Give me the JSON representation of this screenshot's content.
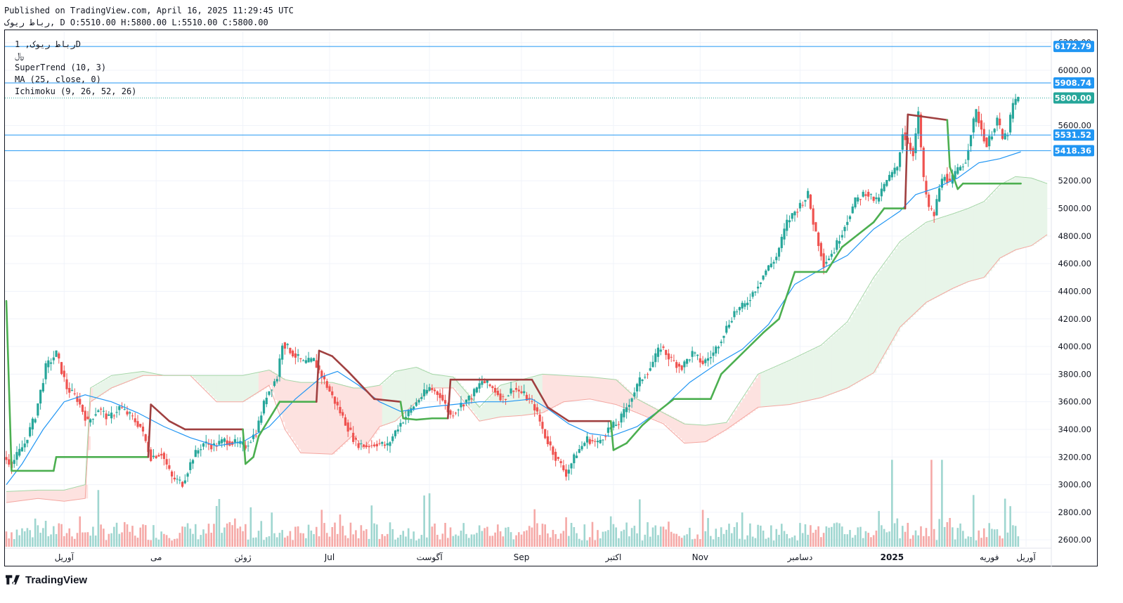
{
  "header": {
    "published": "Published on TradingView.com, April 16, 2025 11:29:45 UTC",
    "ohlc_line": "رباط ریوک, D O:5510.00 H:5800.00 L:5510.00 C:5800.00"
  },
  "legend": {
    "symbol_line": "رباط ریوک, 1D",
    "currency": "﷼",
    "supertrend": "SuperTrend (10, 3)",
    "ma": "MA (25, close, 0)",
    "ichimoku": "Ichimoku (9, 26, 52, 26)"
  },
  "branding": {
    "logo_text": "TradingView",
    "logo_icon": "tradingview-logo-icon"
  },
  "colors": {
    "up": "#26a69a",
    "down": "#ef5350",
    "supertrend_up": "#4caf50",
    "supertrend_down": "#a04040",
    "ma": "#2196f3",
    "cloud_bull": "#e8f5e9",
    "cloud_bear": "#fde2e0",
    "hline": "#2196f3",
    "axis_text": "#131722"
  },
  "chart_data": {
    "type": "candlestick",
    "ylim": [
      2550,
      6280
    ],
    "y_ticks": [
      "6200.00",
      "6000.00",
      "5600.00",
      "5200.00",
      "5000.00",
      "4800.00",
      "4600.00",
      "4400.00",
      "4200.00",
      "4000.00",
      "3800.00",
      "3600.00",
      "3400.00",
      "3200.00",
      "3000.00",
      "2800.00",
      "2600.00"
    ],
    "x_ticks": [
      "آوریل",
      "می",
      "ژوئن",
      "Jul",
      "آگوست",
      "Sep",
      "اکتبر",
      "Nov",
      "دسامبر",
      "2025",
      "فوریه",
      "آوریل"
    ],
    "x_ticks_bold": [
      "2025"
    ],
    "horizontal_lines": [
      {
        "label": "6172.79",
        "value": 6172.79
      },
      {
        "label": "5908.74",
        "value": 5908.74
      },
      {
        "label": "5531.52",
        "value": 5531.52
      },
      {
        "label": "5418.36",
        "value": 5418.36
      }
    ],
    "last_price": {
      "label": "5800.00",
      "value": 5800
    },
    "price_path": [
      [
        0,
        3200
      ],
      [
        3,
        3150
      ],
      [
        8,
        3300
      ],
      [
        12,
        3500
      ],
      [
        16,
        3850
      ],
      [
        20,
        3950
      ],
      [
        24,
        3700
      ],
      [
        28,
        3620
      ],
      [
        32,
        3450
      ],
      [
        36,
        3550
      ],
      [
        40,
        3480
      ],
      [
        44,
        3560
      ],
      [
        48,
        3500
      ],
      [
        52,
        3420
      ],
      [
        56,
        3200
      ],
      [
        60,
        3230
      ],
      [
        64,
        3050
      ],
      [
        68,
        3010
      ],
      [
        72,
        3200
      ],
      [
        76,
        3300
      ],
      [
        80,
        3280
      ],
      [
        84,
        3320
      ],
      [
        88,
        3300
      ],
      [
        92,
        3280
      ],
      [
        96,
        3380
      ],
      [
        100,
        3650
      ],
      [
        104,
        3780
      ],
      [
        106,
        4030
      ],
      [
        110,
        3950
      ],
      [
        114,
        3880
      ],
      [
        118,
        3900
      ],
      [
        122,
        3750
      ],
      [
        126,
        3600
      ],
      [
        130,
        3450
      ],
      [
        134,
        3300
      ],
      [
        138,
        3280
      ],
      [
        142,
        3300
      ],
      [
        146,
        3280
      ],
      [
        150,
        3420
      ],
      [
        154,
        3520
      ],
      [
        158,
        3620
      ],
      [
        162,
        3700
      ],
      [
        166,
        3650
      ],
      [
        170,
        3500
      ],
      [
        174,
        3580
      ],
      [
        178,
        3640
      ],
      [
        182,
        3750
      ],
      [
        186,
        3700
      ],
      [
        190,
        3620
      ],
      [
        194,
        3700
      ],
      [
        198,
        3650
      ],
      [
        202,
        3560
      ],
      [
        206,
        3350
      ],
      [
        210,
        3200
      ],
      [
        214,
        3080
      ],
      [
        218,
        3230
      ],
      [
        222,
        3330
      ],
      [
        226,
        3300
      ],
      [
        230,
        3400
      ],
      [
        234,
        3450
      ],
      [
        238,
        3600
      ],
      [
        242,
        3750
      ],
      [
        246,
        3850
      ],
      [
        250,
        4000
      ],
      [
        254,
        3900
      ],
      [
        258,
        3850
      ],
      [
        262,
        3950
      ],
      [
        266,
        3880
      ],
      [
        270,
        3950
      ],
      [
        274,
        4100
      ],
      [
        278,
        4250
      ],
      [
        282,
        4300
      ],
      [
        286,
        4420
      ],
      [
        290,
        4550
      ],
      [
        294,
        4650
      ],
      [
        298,
        4900
      ],
      [
        302,
        5000
      ],
      [
        306,
        5100
      ],
      [
        308,
        4900
      ],
      [
        312,
        4600
      ],
      [
        316,
        4700
      ],
      [
        320,
        4880
      ],
      [
        324,
        5050
      ],
      [
        328,
        5120
      ],
      [
        332,
        5050
      ],
      [
        336,
        5200
      ],
      [
        340,
        5300
      ],
      [
        342,
        5550
      ],
      [
        346,
        5400
      ],
      [
        348,
        5680
      ],
      [
        350,
        5200
      ],
      [
        352,
        5000
      ],
      [
        354,
        4950
      ],
      [
        356,
        5150
      ],
      [
        358,
        5250
      ],
      [
        360,
        5180
      ],
      [
        362,
        5250
      ],
      [
        366,
        5350
      ],
      [
        368,
        5550
      ],
      [
        370,
        5700
      ],
      [
        374,
        5450
      ],
      [
        378,
        5650
      ],
      [
        380,
        5500
      ],
      [
        382,
        5550
      ],
      [
        384,
        5750
      ],
      [
        386,
        5800
      ]
    ],
    "volume_ylim": [
      0,
      430
    ],
    "supertrend_path": [
      [
        0,
        4330,
        "up"
      ],
      [
        2,
        3100,
        "up"
      ],
      [
        18,
        3100,
        "up"
      ],
      [
        19,
        3200,
        "up"
      ],
      [
        54,
        3200,
        "up"
      ],
      [
        55,
        3580,
        "down"
      ],
      [
        62,
        3460,
        "down"
      ],
      [
        68,
        3400,
        "down"
      ],
      [
        90,
        3400,
        "down"
      ],
      [
        91,
        3150,
        "up"
      ],
      [
        94,
        3200,
        "up"
      ],
      [
        96,
        3350,
        "up"
      ],
      [
        104,
        3600,
        "up"
      ],
      [
        118,
        3600,
        "up"
      ],
      [
        119,
        3970,
        "down"
      ],
      [
        124,
        3930,
        "down"
      ],
      [
        130,
        3820,
        "down"
      ],
      [
        136,
        3700,
        "down"
      ],
      [
        140,
        3620,
        "down"
      ],
      [
        150,
        3600,
        "down"
      ],
      [
        151,
        3480,
        "up"
      ],
      [
        156,
        3470,
        "up"
      ],
      [
        162,
        3480,
        "up"
      ],
      [
        168,
        3480,
        "up"
      ],
      [
        169,
        3760,
        "down"
      ],
      [
        200,
        3760,
        "down"
      ],
      [
        206,
        3560,
        "down"
      ],
      [
        214,
        3460,
        "down"
      ],
      [
        230,
        3460,
        "down"
      ],
      [
        231,
        3250,
        "up"
      ],
      [
        236,
        3300,
        "up"
      ],
      [
        242,
        3430,
        "up"
      ],
      [
        248,
        3530,
        "up"
      ],
      [
        254,
        3620,
        "up"
      ],
      [
        268,
        3620,
        "up"
      ],
      [
        272,
        3800,
        "up"
      ],
      [
        280,
        3950,
        "up"
      ],
      [
        288,
        4100,
        "up"
      ],
      [
        294,
        4200,
        "up"
      ],
      [
        300,
        4540,
        "up"
      ],
      [
        312,
        4540,
        "up"
      ],
      [
        318,
        4720,
        "up"
      ],
      [
        324,
        4810,
        "up"
      ],
      [
        330,
        4900,
        "up"
      ],
      [
        334,
        5000,
        "up"
      ],
      [
        342,
        5000,
        "up"
      ],
      [
        343,
        5680,
        "down"
      ],
      [
        358,
        5640,
        "down"
      ],
      [
        359,
        5300,
        "up"
      ],
      [
        362,
        5140,
        "up"
      ],
      [
        364,
        5180,
        "up"
      ],
      [
        386,
        5180,
        "up"
      ]
    ],
    "ma_path": [
      [
        0,
        3000
      ],
      [
        6,
        3150
      ],
      [
        14,
        3400
      ],
      [
        22,
        3600
      ],
      [
        30,
        3650
      ],
      [
        40,
        3600
      ],
      [
        50,
        3520
      ],
      [
        60,
        3420
      ],
      [
        70,
        3340
      ],
      [
        80,
        3280
      ],
      [
        90,
        3310
      ],
      [
        100,
        3420
      ],
      [
        110,
        3620
      ],
      [
        120,
        3780
      ],
      [
        126,
        3820
      ],
      [
        134,
        3720
      ],
      [
        142,
        3600
      ],
      [
        150,
        3530
      ],
      [
        160,
        3560
      ],
      [
        170,
        3580
      ],
      [
        180,
        3600
      ],
      [
        190,
        3600
      ],
      [
        200,
        3620
      ],
      [
        206,
        3550
      ],
      [
        214,
        3440
      ],
      [
        222,
        3370
      ],
      [
        230,
        3350
      ],
      [
        240,
        3420
      ],
      [
        250,
        3560
      ],
      [
        260,
        3740
      ],
      [
        270,
        3870
      ],
      [
        280,
        3980
      ],
      [
        290,
        4160
      ],
      [
        300,
        4450
      ],
      [
        310,
        4560
      ],
      [
        320,
        4660
      ],
      [
        330,
        4850
      ],
      [
        340,
        4980
      ],
      [
        346,
        5100
      ],
      [
        354,
        5150
      ],
      [
        362,
        5220
      ],
      [
        370,
        5330
      ],
      [
        378,
        5360
      ],
      [
        386,
        5410
      ]
    ],
    "cloud_spans": [
      [
        0,
        2870,
        2950
      ],
      [
        12,
        2900,
        2960
      ],
      [
        22,
        2880,
        2960
      ],
      [
        30,
        2900,
        3000
      ],
      [
        32,
        3600,
        3700
      ],
      [
        40,
        3700,
        3790
      ],
      [
        52,
        3790,
        3820
      ],
      [
        60,
        3790,
        3790
      ],
      [
        70,
        3790,
        3790
      ],
      [
        80,
        3600,
        3790
      ],
      [
        90,
        3600,
        3790
      ],
      [
        100,
        3720,
        3830
      ],
      [
        106,
        3400,
        3760
      ],
      [
        112,
        3230,
        3740
      ],
      [
        124,
        3220,
        3740
      ],
      [
        132,
        3360,
        3700
      ],
      [
        136,
        3260,
        3700
      ],
      [
        142,
        3420,
        3720
      ],
      [
        148,
        3460,
        3820
      ],
      [
        156,
        3600,
        3850
      ],
      [
        162,
        3700,
        3800
      ],
      [
        170,
        3700,
        3780
      ],
      [
        180,
        3460,
        3560
      ],
      [
        188,
        3490,
        3720
      ],
      [
        196,
        3500,
        3760
      ],
      [
        204,
        3520,
        3800
      ],
      [
        212,
        3600,
        3790
      ],
      [
        222,
        3620,
        3780
      ],
      [
        232,
        3580,
        3760
      ],
      [
        240,
        3520,
        3620
      ],
      [
        250,
        3440,
        3520
      ],
      [
        258,
        3300,
        3440
      ],
      [
        266,
        3310,
        3430
      ],
      [
        274,
        3400,
        3450
      ],
      [
        286,
        3560,
        3800
      ],
      [
        298,
        3580,
        3900
      ],
      [
        310,
        3630,
        4010
      ],
      [
        320,
        3700,
        4180
      ],
      [
        330,
        3810,
        4500
      ],
      [
        340,
        4140,
        4760
      ],
      [
        350,
        4320,
        4900
      ],
      [
        360,
        4420,
        4960
      ],
      [
        366,
        4470,
        5000
      ],
      [
        372,
        4500,
        5050
      ],
      [
        378,
        4640,
        5170
      ],
      [
        384,
        4700,
        5230
      ],
      [
        390,
        4730,
        5220
      ],
      [
        396,
        4810,
        5180
      ]
    ],
    "bear_cloud_ranges": [
      [
        0,
        32
      ],
      [
        96,
        142
      ],
      [
        204,
        286
      ]
    ],
    "seed": 7
  }
}
